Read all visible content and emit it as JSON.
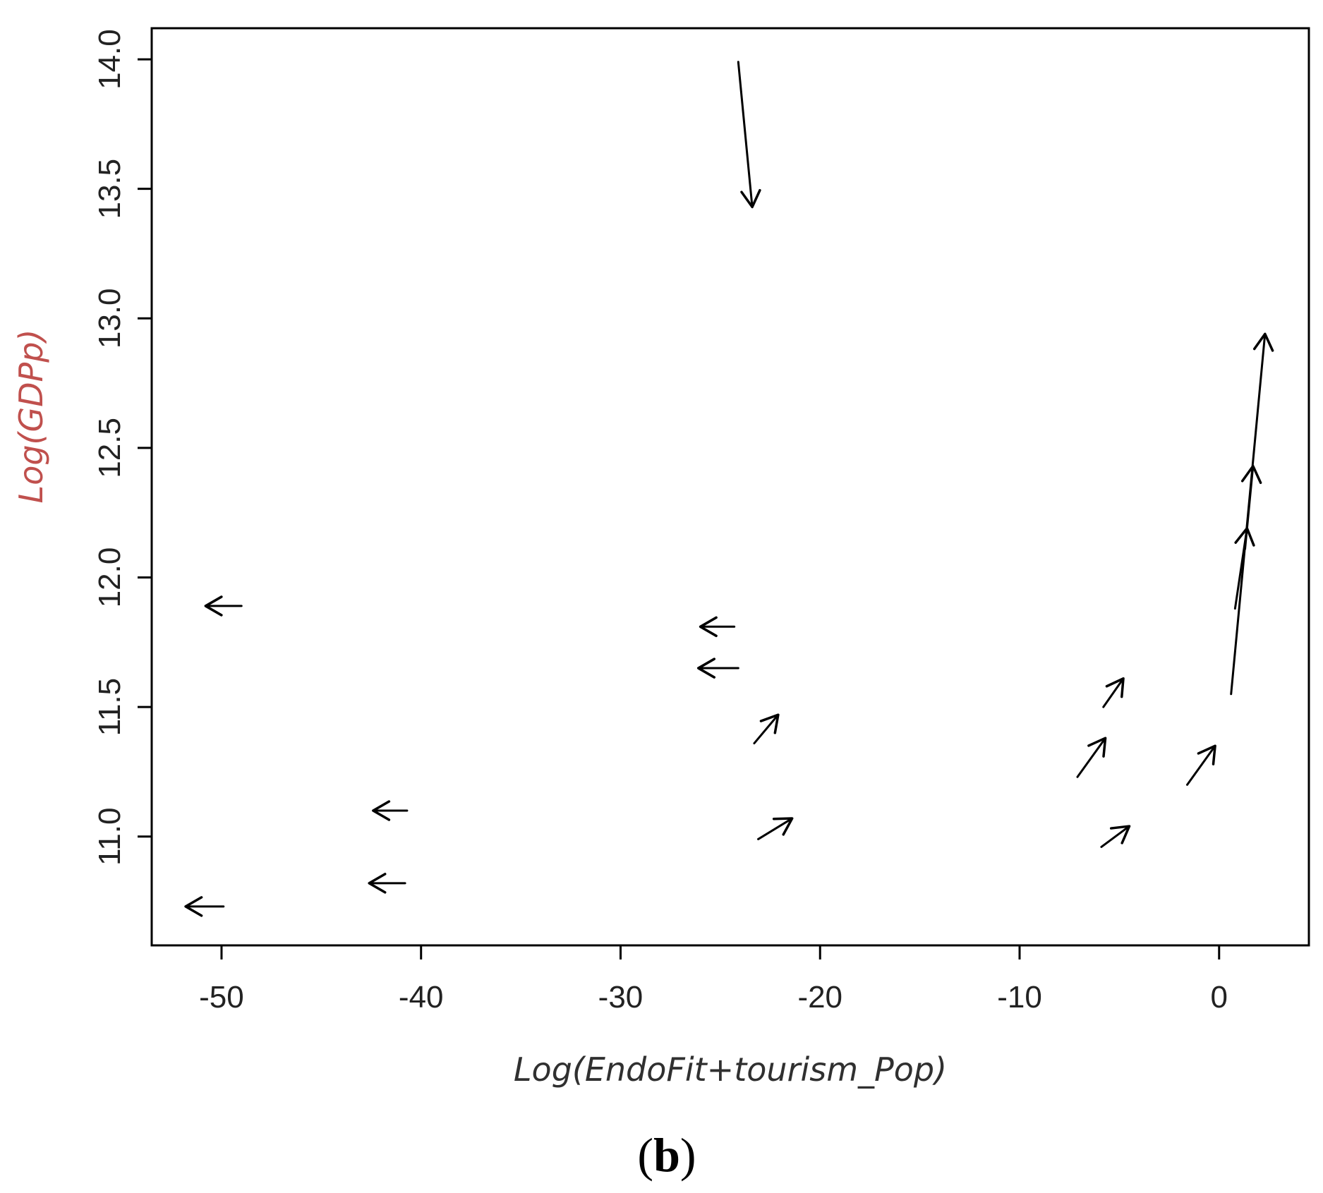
{
  "chart_data": {
    "type": "quiver",
    "title": "",
    "xlabel": "Log(EndoFit+tourism_Pop)",
    "ylabel": "Log(GDPp)",
    "panel_label": "(b)",
    "panel_label_letter": "b",
    "xlim": [
      -53.5,
      4.5
    ],
    "ylim": [
      10.58,
      14.12
    ],
    "x_ticks": [
      -50,
      -40,
      -30,
      -20,
      -10,
      0
    ],
    "y_ticks": [
      11.0,
      11.5,
      12.0,
      12.5,
      13.0,
      13.5,
      14.0
    ],
    "x_tick_labels": [
      "-50",
      "-40",
      "-30",
      "-20",
      "-10",
      "0"
    ],
    "y_tick_labels": [
      "11.0",
      "11.5",
      "12.0",
      "12.5",
      "13.0",
      "13.5",
      "14.0"
    ],
    "grid": false,
    "arrows": [
      {
        "x0": -24.1,
        "y0": 13.99,
        "x1": -23.4,
        "y1": 13.43
      },
      {
        "x0": -49.0,
        "y0": 11.89,
        "x1": -50.8,
        "y1": 11.89
      },
      {
        "x0": -24.3,
        "y0": 11.81,
        "x1": -26.0,
        "y1": 11.81
      },
      {
        "x0": -24.1,
        "y0": 11.65,
        "x1": -26.1,
        "y1": 11.65
      },
      {
        "x0": -23.3,
        "y0": 11.36,
        "x1": -22.1,
        "y1": 11.47
      },
      {
        "x0": -23.1,
        "y0": 10.99,
        "x1": -21.4,
        "y1": 11.07
      },
      {
        "x0": -40.7,
        "y0": 11.1,
        "x1": -42.4,
        "y1": 11.1
      },
      {
        "x0": -40.8,
        "y0": 10.82,
        "x1": -42.6,
        "y1": 10.82
      },
      {
        "x0": -49.9,
        "y0": 10.73,
        "x1": -51.8,
        "y1": 10.73
      },
      {
        "x0": -5.8,
        "y0": 11.5,
        "x1": -4.8,
        "y1": 11.61
      },
      {
        "x0": -7.1,
        "y0": 11.23,
        "x1": -5.7,
        "y1": 11.38
      },
      {
        "x0": -5.9,
        "y0": 10.96,
        "x1": -4.5,
        "y1": 11.04
      },
      {
        "x0": -1.6,
        "y0": 11.2,
        "x1": -0.2,
        "y1": 11.35
      },
      {
        "x0": 0.6,
        "y0": 11.55,
        "x1": 2.3,
        "y1": 12.94
      },
      {
        "x0": 0.8,
        "y0": 11.88,
        "x1": 1.4,
        "y1": 12.19
      },
      {
        "x0": 1.3,
        "y0": 12.11,
        "x1": 1.7,
        "y1": 12.43
      }
    ]
  },
  "colors": {
    "axis": "#000000",
    "arrow": "#000000",
    "tick_label": "#222222",
    "xlabel": "#303030",
    "ylabel": "#c0504d",
    "panel_label": "#000000",
    "background": "#ffffff"
  }
}
